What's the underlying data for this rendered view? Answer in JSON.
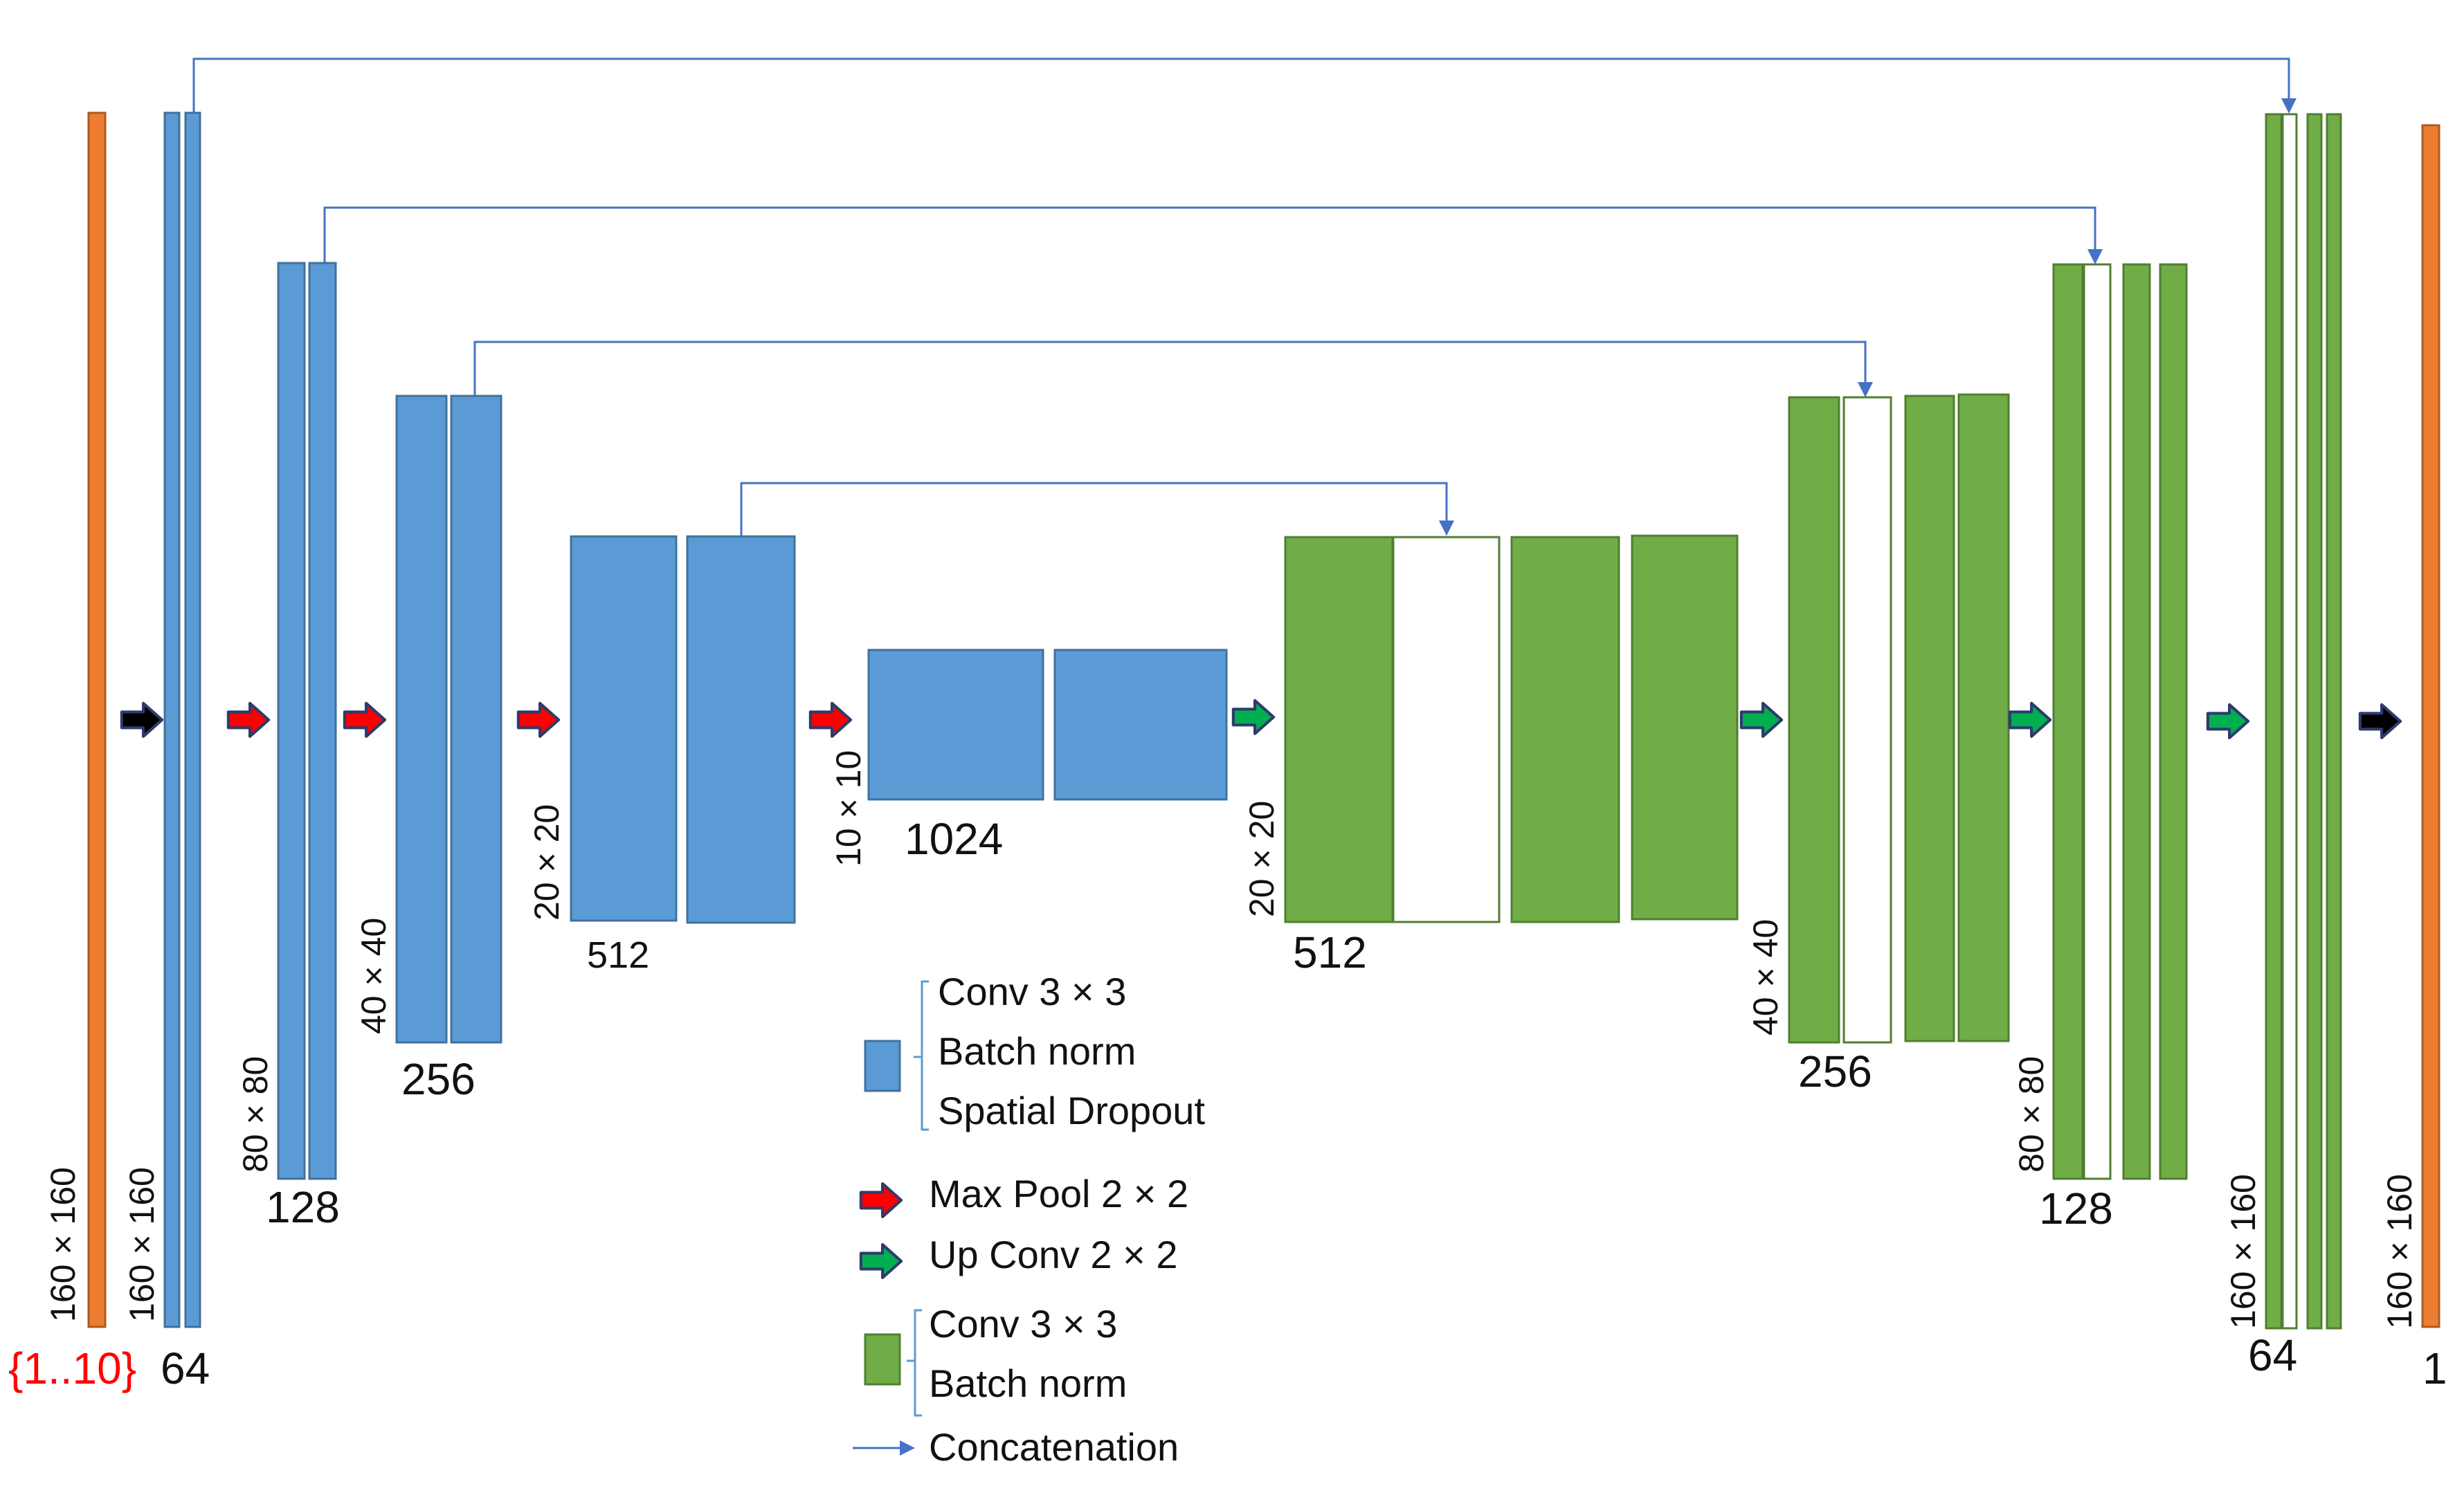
{
  "diagram": {
    "input_channels": "{1..10}",
    "output_channels": "1",
    "encoder": [
      {
        "size": "160 × 160",
        "channels": "64"
      },
      {
        "size": "80 × 80",
        "channels": "128"
      },
      {
        "size": "40 × 40",
        "channels": "256"
      },
      {
        "size": "20 × 20",
        "channels": "512"
      },
      {
        "size": "10 × 10",
        "channels": "1024"
      }
    ],
    "decoder": [
      {
        "size": "20 × 20",
        "channels": "512"
      },
      {
        "size": "40 × 40",
        "channels": "256"
      },
      {
        "size": "80 × 80",
        "channels": "128"
      },
      {
        "size": "160 × 160",
        "channels": "64"
      }
    ],
    "input_size": "160 × 160",
    "output_size": "160 × 160"
  },
  "legend": {
    "blue_block": [
      "Conv 3 × 3",
      "Batch norm",
      "Spatial Dropout"
    ],
    "max_pool": "Max Pool 2 × 2",
    "up_conv": "Up Conv 2 × 2",
    "green_block": [
      "Conv 3 × 3",
      "Batch norm"
    ],
    "concatenation": "Concatenation"
  },
  "colors": {
    "encoder": "#5b9bd5",
    "decoder": "#70ad47",
    "io": "#ed7d31",
    "max_pool_arrow": "#ff0000",
    "up_conv_arrow": "#00b050",
    "skip_line": "#4472c4",
    "input_label": "#ff0000"
  }
}
